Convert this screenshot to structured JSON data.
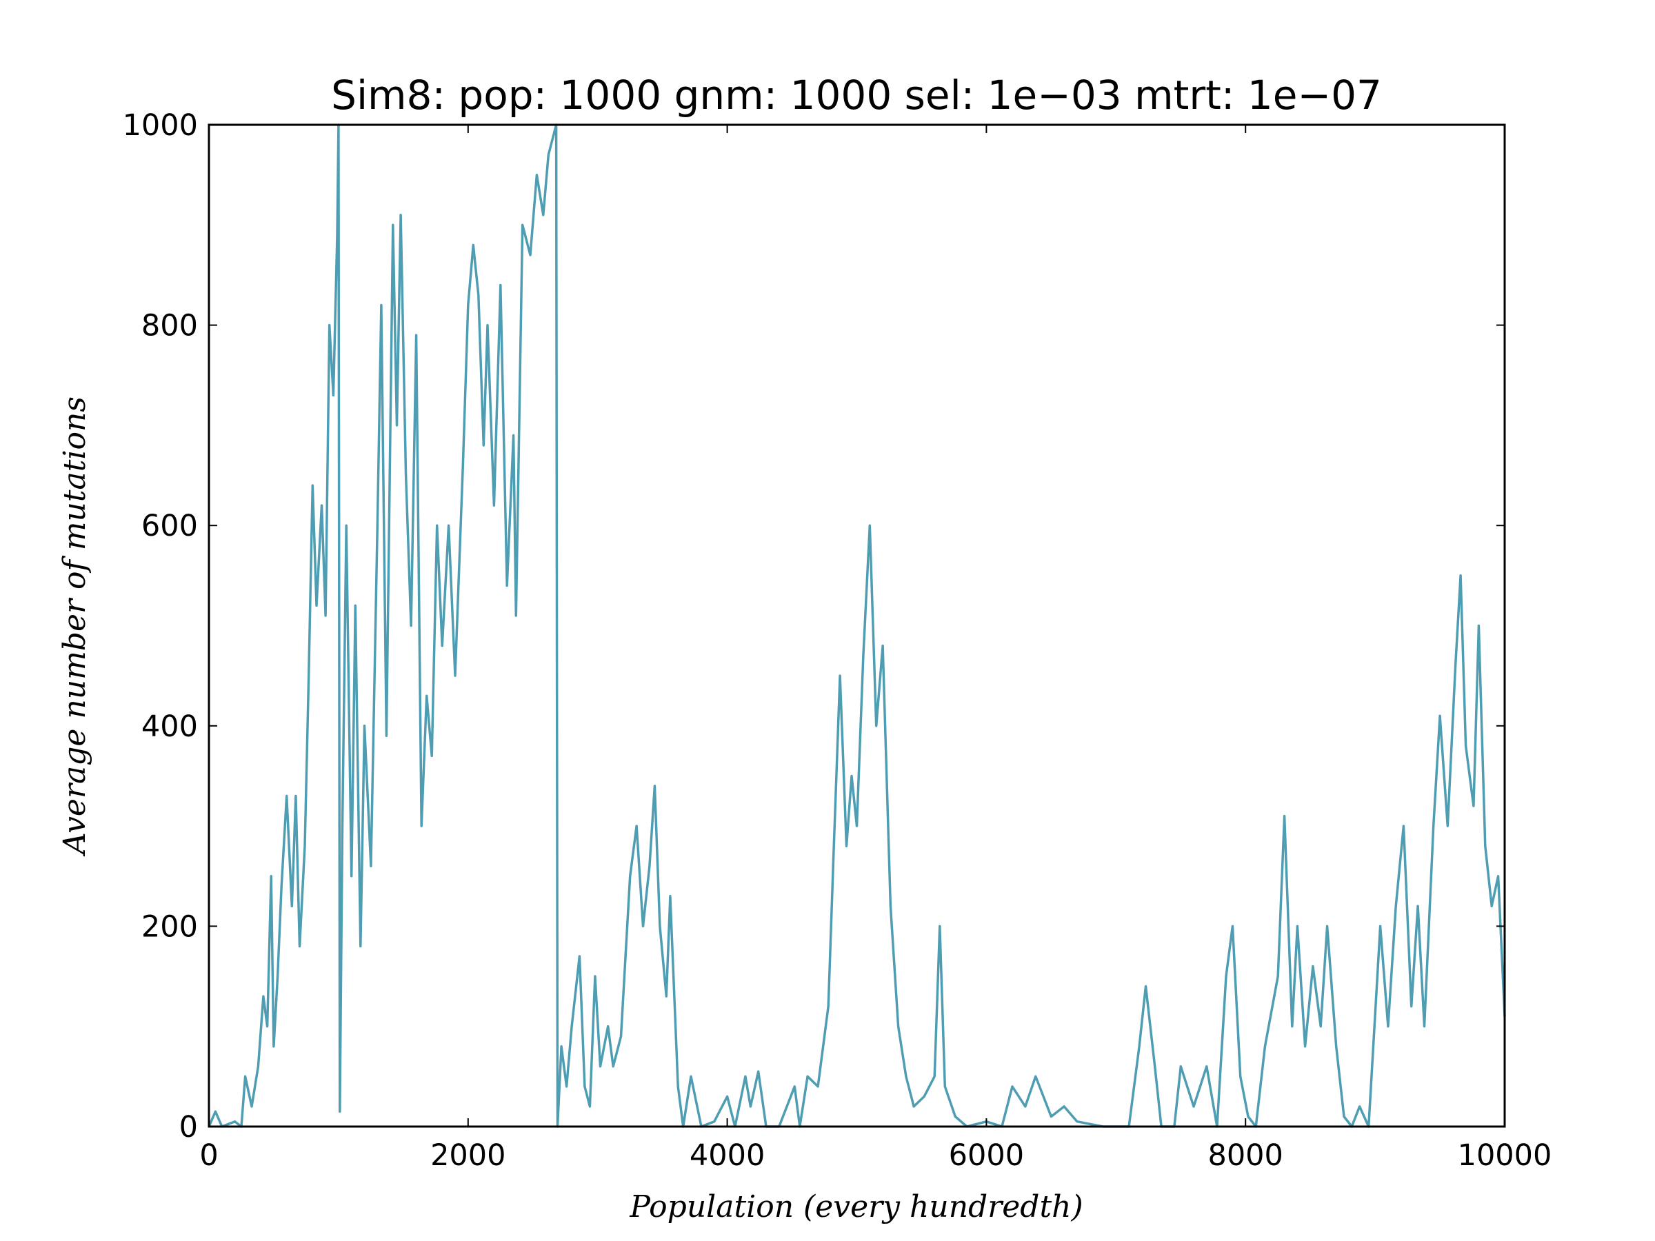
{
  "chart_data": {
    "type": "line",
    "title": "Sim8: pop: 1000 gnm: 1000 sel: 1e−03 mtrt: 1e−07",
    "x_label": "Population (every hundredth)",
    "y_label": "Average number of mutations",
    "x": [
      0,
      50,
      100,
      200,
      250,
      280,
      330,
      380,
      420,
      450,
      480,
      500,
      530,
      560,
      600,
      640,
      670,
      700,
      740,
      770,
      800,
      830,
      870,
      900,
      930,
      960,
      990,
      1000,
      1010,
      1030,
      1060,
      1100,
      1130,
      1170,
      1200,
      1250,
      1300,
      1330,
      1370,
      1420,
      1450,
      1480,
      1520,
      1560,
      1600,
      1640,
      1680,
      1720,
      1760,
      1800,
      1850,
      1900,
      1960,
      2000,
      2040,
      2080,
      2120,
      2150,
      2200,
      2250,
      2300,
      2350,
      2370,
      2420,
      2480,
      2530,
      2580,
      2620,
      2680,
      2690,
      2720,
      2760,
      2800,
      2860,
      2900,
      2940,
      2980,
      3020,
      3080,
      3120,
      3180,
      3250,
      3300,
      3350,
      3400,
      3440,
      3480,
      3530,
      3560,
      3620,
      3660,
      3720,
      3800,
      3900,
      4000,
      4060,
      4140,
      4180,
      4240,
      4300,
      4400,
      4520,
      4560,
      4620,
      4700,
      4780,
      4820,
      4870,
      4920,
      4960,
      5000,
      5050,
      5100,
      5150,
      5200,
      5260,
      5320,
      5380,
      5440,
      5520,
      5600,
      5640,
      5680,
      5760,
      5850,
      6000,
      6120,
      6200,
      6300,
      6380,
      6440,
      6500,
      6600,
      6700,
      6900,
      7100,
      7180,
      7230,
      7300,
      7350,
      7450,
      7500,
      7600,
      7700,
      7780,
      7850,
      7900,
      7960,
      8020,
      8080,
      8150,
      8250,
      8300,
      8360,
      8400,
      8460,
      8520,
      8580,
      8630,
      8700,
      8760,
      8820,
      8880,
      8950,
      9040,
      9100,
      9160,
      9220,
      9280,
      9330,
      9380,
      9450,
      9500,
      9560,
      9620,
      9660,
      9700,
      9760,
      9800,
      9850,
      9900,
      9950,
      10000
    ],
    "series": [
      {
        "color": "#4f9db2",
        "values": [
          0,
          15,
          0,
          5,
          0,
          50,
          20,
          60,
          130,
          100,
          250,
          80,
          150,
          240,
          330,
          220,
          330,
          180,
          280,
          450,
          640,
          520,
          620,
          510,
          800,
          730,
          890,
          1000,
          15,
          300,
          600,
          250,
          520,
          180,
          400,
          260,
          600,
          820,
          390,
          900,
          700,
          910,
          650,
          500,
          790,
          300,
          430,
          370,
          600,
          480,
          600,
          450,
          660,
          820,
          880,
          830,
          680,
          800,
          620,
          840,
          540,
          690,
          510,
          900,
          870,
          950,
          910,
          970,
          1000,
          0,
          80,
          40,
          100,
          170,
          40,
          20,
          150,
          60,
          100,
          60,
          90,
          250,
          300,
          200,
          260,
          340,
          200,
          130,
          230,
          40,
          0,
          50,
          0,
          5,
          30,
          0,
          50,
          20,
          55,
          0,
          0,
          40,
          0,
          50,
          40,
          120,
          270,
          450,
          280,
          350,
          300,
          470,
          600,
          400,
          480,
          220,
          100,
          50,
          20,
          30,
          50,
          200,
          40,
          10,
          0,
          5,
          0,
          40,
          20,
          50,
          30,
          10,
          20,
          5,
          0,
          0,
          80,
          140,
          60,
          0,
          0,
          60,
          20,
          60,
          0,
          150,
          200,
          50,
          10,
          0,
          80,
          150,
          310,
          100,
          200,
          80,
          160,
          100,
          200,
          80,
          10,
          0,
          20,
          0,
          200,
          100,
          220,
          300,
          120,
          220,
          100,
          300,
          410,
          300,
          460,
          550,
          380,
          320,
          500,
          280,
          220,
          250,
          110
        ]
      }
    ],
    "xlim": [
      0,
      10000
    ],
    "ylim": [
      0,
      1000
    ],
    "xticks": [
      0,
      2000,
      4000,
      6000,
      8000,
      10000
    ],
    "yticks": [
      0,
      200,
      400,
      600,
      800,
      1000
    ]
  }
}
